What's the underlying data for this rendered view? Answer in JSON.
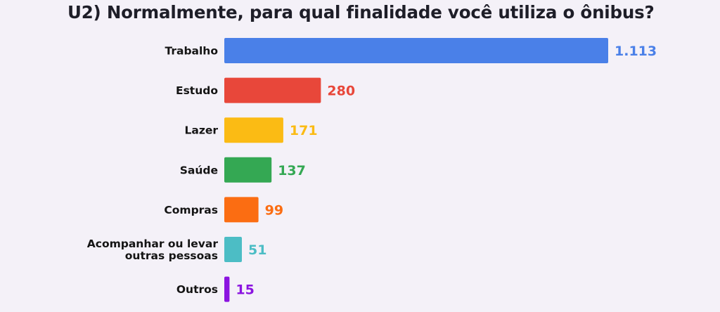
{
  "chart_data": {
    "type": "bar",
    "orientation": "horizontal",
    "title": "U2) Normalmente, para qual finalidade você utiliza o ônibus?",
    "categories": [
      "Trabalho",
      "Estudo",
      "Lazer",
      "Saúde",
      "Compras",
      [
        "Acompanhar ou levar",
        "outras pessoas"
      ],
      "Outros"
    ],
    "values": [
      1113,
      280,
      171,
      137,
      99,
      51,
      15
    ],
    "value_labels": [
      "1.113",
      "280",
      "171",
      "137",
      "99",
      "51",
      "15"
    ],
    "colors": [
      "#4a80e8",
      "#e8473a",
      "#fbbb14",
      "#34a853",
      "#fb6d12",
      "#4cbdc5",
      "#8b14e0"
    ],
    "xlim": [
      0,
      1113
    ],
    "grid": false,
    "legend": "none"
  }
}
